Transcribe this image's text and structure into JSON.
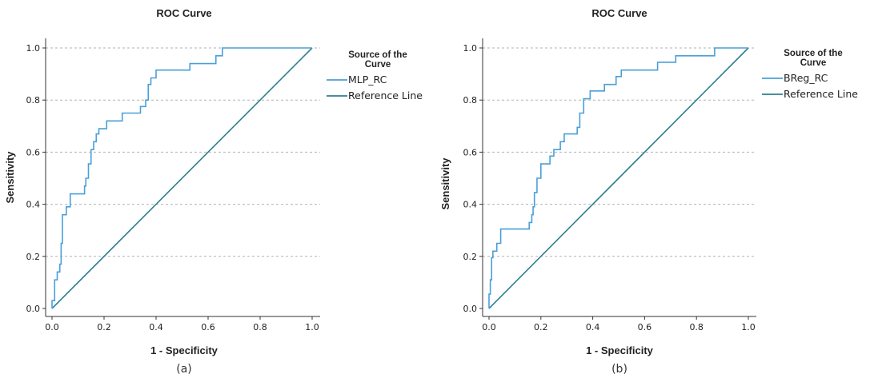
{
  "chart_data": [
    {
      "type": "line",
      "title": "ROC Curve",
      "xlabel": "1 - Specificity",
      "ylabel": "Sensitivity",
      "xlim": [
        0,
        1
      ],
      "ylim": [
        0,
        1
      ],
      "x_ticks": [
        "0.0",
        "0.2",
        "0.4",
        "0.6",
        "0.8",
        "1.0"
      ],
      "y_ticks": [
        "0.0",
        "0.2",
        "0.4",
        "0.6",
        "0.8",
        "1.0"
      ],
      "grid": "horizontal dashed",
      "legend": {
        "title": "Source of the Curve",
        "position": "right"
      },
      "caption": "(a)",
      "series": [
        {
          "name": "MLP_RC",
          "color": "#4a9fd8",
          "x": [
            0.0,
            0.0,
            0.01,
            0.01,
            0.02,
            0.02,
            0.03,
            0.03,
            0.035,
            0.035,
            0.04,
            0.04,
            0.055,
            0.055,
            0.07,
            0.07,
            0.125,
            0.125,
            0.13,
            0.13,
            0.14,
            0.14,
            0.15,
            0.15,
            0.16,
            0.16,
            0.17,
            0.17,
            0.18,
            0.18,
            0.21,
            0.21,
            0.27,
            0.27,
            0.34,
            0.34,
            0.36,
            0.36,
            0.37,
            0.37,
            0.38,
            0.38,
            0.4,
            0.4,
            0.42,
            0.42,
            0.53,
            0.53,
            0.63,
            0.63,
            0.655,
            0.655,
            1.0
          ],
          "y": [
            0.0,
            0.03,
            0.03,
            0.11,
            0.11,
            0.14,
            0.14,
            0.17,
            0.17,
            0.25,
            0.25,
            0.36,
            0.36,
            0.39,
            0.39,
            0.44,
            0.44,
            0.47,
            0.47,
            0.5,
            0.5,
            0.555,
            0.555,
            0.61,
            0.61,
            0.64,
            0.64,
            0.67,
            0.67,
            0.69,
            0.69,
            0.72,
            0.72,
            0.75,
            0.75,
            0.775,
            0.775,
            0.8,
            0.8,
            0.86,
            0.86,
            0.885,
            0.885,
            0.915,
            0.915,
            0.915,
            0.915,
            0.94,
            0.94,
            0.97,
            0.97,
            1.0,
            1.0
          ]
        },
        {
          "name": "Reference Line",
          "color": "#2d7f8e",
          "x": [
            0.0,
            1.0
          ],
          "y": [
            0.0,
            1.0
          ]
        }
      ]
    },
    {
      "type": "line",
      "title": "ROC Curve",
      "xlabel": "1 - Specificity",
      "ylabel": "Sensitivity",
      "xlim": [
        0,
        1
      ],
      "ylim": [
        0,
        1
      ],
      "x_ticks": [
        "0.0",
        "0.2",
        "0.4",
        "0.6",
        "0.8",
        "1.0"
      ],
      "y_ticks": [
        "0.0",
        "0.2",
        "0.4",
        "0.6",
        "0.8",
        "1.0"
      ],
      "grid": "horizontal dashed",
      "legend": {
        "title": "Source of the Curve",
        "position": "right"
      },
      "caption": "(b)",
      "series": [
        {
          "name": "BReg_RC",
          "color": "#4a9fd8",
          "x": [
            0.0,
            0.0,
            0.005,
            0.005,
            0.01,
            0.01,
            0.015,
            0.015,
            0.03,
            0.03,
            0.045,
            0.045,
            0.075,
            0.075,
            0.155,
            0.155,
            0.165,
            0.165,
            0.17,
            0.17,
            0.175,
            0.175,
            0.185,
            0.185,
            0.2,
            0.2,
            0.235,
            0.235,
            0.25,
            0.25,
            0.275,
            0.275,
            0.29,
            0.29,
            0.34,
            0.34,
            0.35,
            0.35,
            0.365,
            0.365,
            0.39,
            0.39,
            0.425,
            0.425,
            0.445,
            0.445,
            0.475,
            0.475,
            0.49,
            0.49,
            0.51,
            0.51,
            0.65,
            0.65,
            0.72,
            0.72,
            0.87,
            0.87,
            0.92,
            0.92,
            1.0
          ],
          "y": [
            0.0,
            0.055,
            0.055,
            0.11,
            0.11,
            0.195,
            0.195,
            0.22,
            0.22,
            0.25,
            0.25,
            0.305,
            0.305,
            0.305,
            0.305,
            0.33,
            0.33,
            0.36,
            0.36,
            0.39,
            0.39,
            0.445,
            0.445,
            0.5,
            0.5,
            0.555,
            0.555,
            0.585,
            0.585,
            0.61,
            0.61,
            0.64,
            0.64,
            0.67,
            0.67,
            0.695,
            0.695,
            0.75,
            0.75,
            0.805,
            0.805,
            0.835,
            0.835,
            0.835,
            0.835,
            0.86,
            0.86,
            0.86,
            0.86,
            0.89,
            0.89,
            0.915,
            0.915,
            0.945,
            0.945,
            0.97,
            0.97,
            1.0,
            1.0,
            1.0,
            1.0
          ]
        },
        {
          "name": "Reference Line",
          "color": "#2d7f8e",
          "x": [
            0.0,
            1.0
          ],
          "y": [
            0.0,
            1.0
          ]
        }
      ]
    }
  ]
}
